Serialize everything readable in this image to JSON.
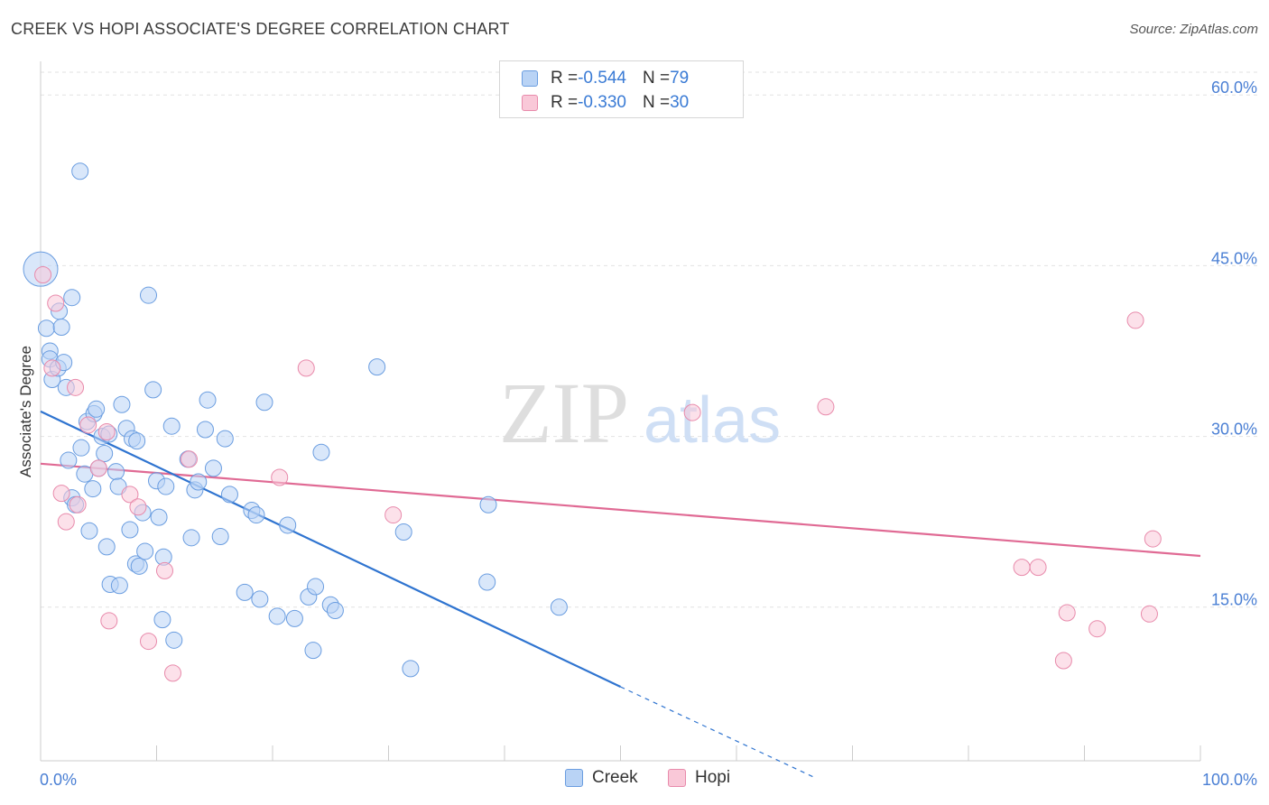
{
  "header": {
    "title": "CREEK VS HOPI ASSOCIATE'S DEGREE CORRELATION CHART",
    "source": "Source: ZipAtlas.com"
  },
  "watermark": {
    "zip": "ZIP",
    "atlas": "atlas"
  },
  "legend_top": {
    "rows": [
      {
        "r_label": "R = ",
        "r_value": "-0.544",
        "n_label": "N = ",
        "n_value": "79",
        "color": "#b9d3f5",
        "border": "#6a9de0"
      },
      {
        "r_label": "R = ",
        "r_value": "-0.330",
        "n_label": "N = ",
        "n_value": "30",
        "color": "#f9c8d8",
        "border": "#e88aab"
      }
    ]
  },
  "legend_bottom": {
    "items": [
      "Creek",
      "Hopi"
    ]
  },
  "chart_data": {
    "type": "scatter",
    "title": "CREEK VS HOPI ASSOCIATE'S DEGREE CORRELATION CHART",
    "ylabel": "Associate's Degree",
    "xlim": [
      0,
      100
    ],
    "ylim": [
      1.5,
      62
    ],
    "x_tick_labels": [
      "0.0%",
      "100.0%"
    ],
    "y_ticks": [
      15,
      30,
      45,
      60
    ],
    "y_tick_labels": [
      "15.0%",
      "30.0%",
      "45.0%",
      "60.0%"
    ],
    "grid": true,
    "legend": "bottom",
    "series": [
      {
        "name": "Creek",
        "color": "#6a9de0",
        "fill": "#b9d3f5",
        "trend": {
          "x0": 0,
          "y0": 32.2,
          "x1": 50,
          "y1": 8.0,
          "dash_to_x": 66.8,
          "dash_to_y": 0
        },
        "points": [
          [
            0.0,
            44.7
          ],
          [
            3.4,
            53.3
          ],
          [
            0.5,
            39.5
          ],
          [
            0.8,
            37.5
          ],
          [
            0.8,
            36.8
          ],
          [
            1.0,
            35.0
          ],
          [
            1.5,
            36.0
          ],
          [
            1.6,
            41.0
          ],
          [
            1.8,
            39.6
          ],
          [
            2.0,
            36.5
          ],
          [
            2.2,
            34.3
          ],
          [
            2.7,
            42.2
          ],
          [
            2.4,
            27.9
          ],
          [
            2.7,
            24.6
          ],
          [
            3.0,
            24.0
          ],
          [
            3.5,
            29.0
          ],
          [
            3.8,
            26.7
          ],
          [
            4.0,
            31.3
          ],
          [
            4.2,
            21.7
          ],
          [
            4.5,
            25.4
          ],
          [
            4.6,
            32.0
          ],
          [
            4.8,
            32.4
          ],
          [
            5.0,
            27.2
          ],
          [
            5.3,
            30.0
          ],
          [
            5.5,
            28.5
          ],
          [
            5.7,
            20.3
          ],
          [
            5.9,
            30.2
          ],
          [
            6.0,
            17.0
          ],
          [
            6.5,
            26.9
          ],
          [
            6.7,
            25.6
          ],
          [
            6.8,
            16.9
          ],
          [
            7.0,
            32.8
          ],
          [
            7.4,
            30.7
          ],
          [
            7.7,
            21.8
          ],
          [
            7.9,
            29.8
          ],
          [
            8.2,
            18.8
          ],
          [
            8.3,
            29.6
          ],
          [
            8.5,
            18.6
          ],
          [
            8.8,
            23.3
          ],
          [
            9.0,
            19.9
          ],
          [
            9.3,
            42.4
          ],
          [
            9.7,
            34.1
          ],
          [
            10.0,
            26.1
          ],
          [
            10.2,
            22.9
          ],
          [
            10.5,
            13.9
          ],
          [
            10.6,
            19.4
          ],
          [
            10.8,
            25.6
          ],
          [
            11.3,
            30.9
          ],
          [
            11.5,
            12.1
          ],
          [
            12.7,
            28.0
          ],
          [
            13.0,
            21.1
          ],
          [
            13.3,
            25.3
          ],
          [
            13.6,
            26.0
          ],
          [
            14.2,
            30.6
          ],
          [
            14.4,
            33.2
          ],
          [
            14.9,
            27.2
          ],
          [
            15.5,
            21.2
          ],
          [
            15.9,
            29.8
          ],
          [
            16.3,
            24.9
          ],
          [
            17.6,
            16.3
          ],
          [
            18.2,
            23.5
          ],
          [
            18.6,
            23.1
          ],
          [
            18.9,
            15.7
          ],
          [
            19.3,
            33.0
          ],
          [
            20.4,
            14.2
          ],
          [
            21.3,
            22.2
          ],
          [
            21.9,
            14.0
          ],
          [
            23.1,
            15.9
          ],
          [
            23.5,
            11.2
          ],
          [
            23.7,
            16.8
          ],
          [
            24.2,
            28.6
          ],
          [
            25.0,
            15.2
          ],
          [
            25.4,
            14.7
          ],
          [
            29.0,
            36.1
          ],
          [
            31.3,
            21.6
          ],
          [
            31.9,
            9.6
          ],
          [
            38.6,
            24.0
          ],
          [
            38.5,
            17.2
          ],
          [
            44.7,
            15.0
          ]
        ],
        "big_point_index": 0
      },
      {
        "name": "Hopi",
        "color": "#e88aab",
        "fill": "#f9c8d8",
        "trend": {
          "x0": 0,
          "y0": 27.6,
          "x1": 100,
          "y1": 19.5
        },
        "points": [
          [
            0.2,
            44.2
          ],
          [
            1.3,
            41.7
          ],
          [
            1.0,
            36.0
          ],
          [
            3.0,
            34.3
          ],
          [
            1.8,
            25.0
          ],
          [
            2.2,
            22.5
          ],
          [
            3.2,
            24.0
          ],
          [
            4.1,
            31.0
          ],
          [
            5.0,
            27.2
          ],
          [
            5.7,
            30.4
          ],
          [
            7.7,
            24.9
          ],
          [
            8.4,
            23.8
          ],
          [
            9.3,
            12.0
          ],
          [
            10.7,
            18.2
          ],
          [
            11.4,
            9.2
          ],
          [
            12.8,
            28.0
          ],
          [
            5.9,
            13.8
          ],
          [
            20.6,
            26.4
          ],
          [
            22.9,
            36.0
          ],
          [
            30.4,
            23.1
          ],
          [
            56.2,
            32.1
          ],
          [
            67.7,
            32.6
          ],
          [
            95.9,
            21.0
          ],
          [
            94.4,
            40.2
          ],
          [
            84.6,
            18.5
          ],
          [
            86.0,
            18.5
          ],
          [
            88.5,
            14.5
          ],
          [
            88.2,
            10.3
          ],
          [
            91.1,
            13.1
          ],
          [
            95.6,
            14.4
          ]
        ]
      }
    ]
  }
}
